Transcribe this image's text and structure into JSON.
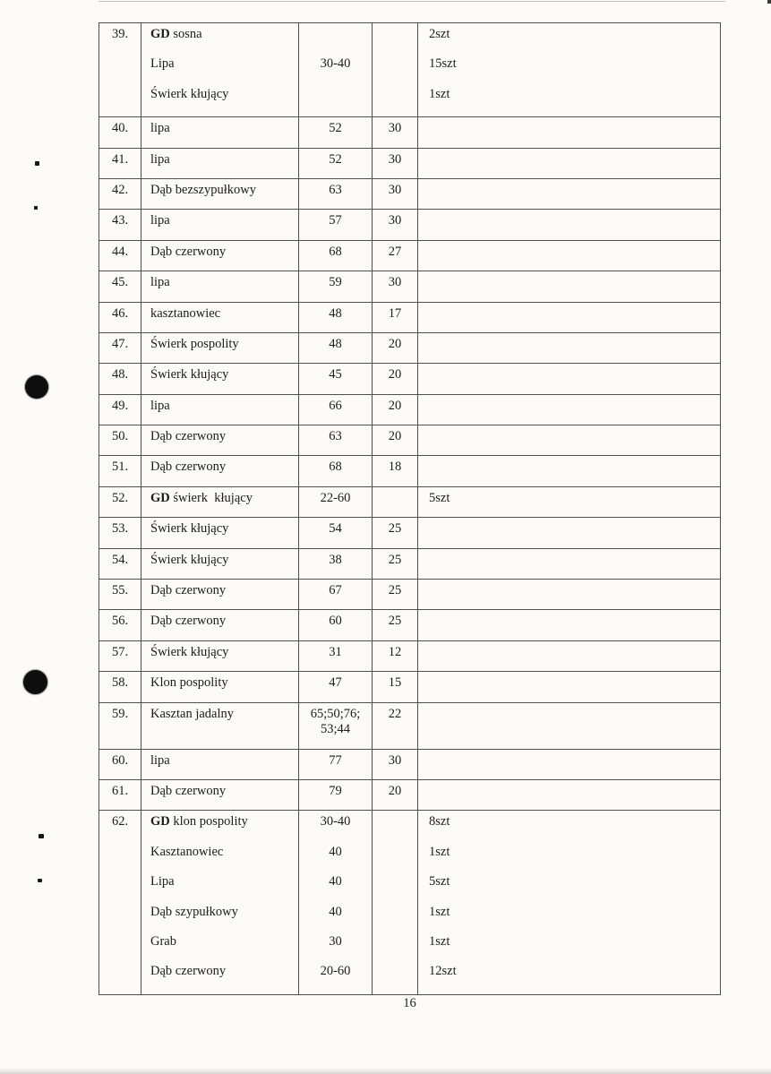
{
  "page": {
    "number": "16"
  },
  "table": {
    "rows": [
      {
        "no": "39.",
        "spaced": true,
        "species": [
          {
            "gd": "GD ",
            "name": "sosna"
          },
          {
            "gd": "",
            "name": "Lipa"
          },
          {
            "gd": "",
            "name": "Świerk kłujący"
          }
        ],
        "diameter": [
          "",
          "30-40"
        ],
        "height": "",
        "qty": [
          "2szt",
          "15szt",
          "1szt"
        ]
      },
      {
        "no": "40.",
        "species": [
          {
            "gd": "",
            "name": "lipa"
          }
        ],
        "diameter": [
          "52"
        ],
        "height": "30",
        "qty": []
      },
      {
        "no": "41.",
        "species": [
          {
            "gd": "",
            "name": "lipa"
          }
        ],
        "diameter": [
          "52"
        ],
        "height": "30",
        "qty": []
      },
      {
        "no": "42.",
        "species": [
          {
            "gd": "",
            "name": "Dąb bezszypułkowy"
          }
        ],
        "diameter": [
          "63"
        ],
        "height": "30",
        "qty": []
      },
      {
        "no": "43.",
        "species": [
          {
            "gd": "",
            "name": "lipa"
          }
        ],
        "diameter": [
          "57"
        ],
        "height": "30",
        "qty": []
      },
      {
        "no": "44.",
        "species": [
          {
            "gd": "",
            "name": "Dąb czerwony"
          }
        ],
        "diameter": [
          "68"
        ],
        "height": "27",
        "qty": []
      },
      {
        "no": "45.",
        "species": [
          {
            "gd": "",
            "name": "lipa"
          }
        ],
        "diameter": [
          "59"
        ],
        "height": "30",
        "qty": []
      },
      {
        "no": "46.",
        "species": [
          {
            "gd": "",
            "name": "kasztanowiec"
          }
        ],
        "diameter": [
          "48"
        ],
        "height": "17",
        "qty": []
      },
      {
        "no": "47.",
        "species": [
          {
            "gd": "",
            "name": "Świerk pospolity"
          }
        ],
        "diameter": [
          "48"
        ],
        "height": "20",
        "qty": []
      },
      {
        "no": "48.",
        "species": [
          {
            "gd": "",
            "name": "Świerk kłujący"
          }
        ],
        "diameter": [
          "45"
        ],
        "height": "20",
        "qty": []
      },
      {
        "no": "49.",
        "species": [
          {
            "gd": "",
            "name": "lipa"
          }
        ],
        "diameter": [
          "66"
        ],
        "height": "20",
        "qty": []
      },
      {
        "no": "50.",
        "species": [
          {
            "gd": "",
            "name": "Dąb czerwony"
          }
        ],
        "diameter": [
          "63"
        ],
        "height": "20",
        "qty": []
      },
      {
        "no": "51.",
        "species": [
          {
            "gd": "",
            "name": "Dąb czerwony"
          }
        ],
        "diameter": [
          "68"
        ],
        "height": "18",
        "qty": []
      },
      {
        "no": "52.",
        "species": [
          {
            "gd": "GD ",
            "name": "świerk  kłujący"
          }
        ],
        "diameter": [
          "22-60"
        ],
        "height": "",
        "qty": [
          "5szt"
        ]
      },
      {
        "no": "53.",
        "species": [
          {
            "gd": "",
            "name": "Świerk kłujący"
          }
        ],
        "diameter": [
          "54"
        ],
        "height": "25",
        "qty": []
      },
      {
        "no": "54.",
        "species": [
          {
            "gd": "",
            "name": "Świerk kłujący"
          }
        ],
        "diameter": [
          "38"
        ],
        "height": "25",
        "qty": []
      },
      {
        "no": "55.",
        "species": [
          {
            "gd": "",
            "name": "Dąb czerwony"
          }
        ],
        "diameter": [
          "67"
        ],
        "height": "25",
        "qty": []
      },
      {
        "no": "56.",
        "species": [
          {
            "gd": "",
            "name": "Dąb czerwony"
          }
        ],
        "diameter": [
          "60"
        ],
        "height": "25",
        "qty": []
      },
      {
        "no": "57.",
        "species": [
          {
            "gd": "",
            "name": "Świerk kłujący"
          }
        ],
        "diameter": [
          "31"
        ],
        "height": "12",
        "qty": []
      },
      {
        "no": "58.",
        "species": [
          {
            "gd": "",
            "name": "Klon pospolity"
          }
        ],
        "diameter": [
          "47"
        ],
        "height": "15",
        "qty": []
      },
      {
        "no": "59.",
        "species": [
          {
            "gd": "",
            "name": "Kasztan jadalny"
          }
        ],
        "diameter": [
          "65;50;76;",
          "53;44"
        ],
        "height": "22",
        "qty": []
      },
      {
        "no": "60.",
        "species": [
          {
            "gd": "",
            "name": "lipa"
          }
        ],
        "diameter": [
          "77"
        ],
        "height": "30",
        "qty": []
      },
      {
        "no": "61.",
        "species": [
          {
            "gd": "",
            "name": "Dąb czerwony"
          }
        ],
        "diameter": [
          "79"
        ],
        "height": "20",
        "qty": []
      },
      {
        "no": "62.",
        "spaced": true,
        "species": [
          {
            "gd": "GD ",
            "name": "klon pospolity"
          },
          {
            "gd": "",
            "name": "Kasztanowiec"
          },
          {
            "gd": "",
            "name": "Lipa"
          },
          {
            "gd": "",
            "name": "Dąb szypułkowy"
          },
          {
            "gd": "",
            "name": "Grab"
          },
          {
            "gd": "",
            "name": "Dąb czerwony"
          }
        ],
        "diameter": [
          "30-40",
          "40",
          "40",
          "40",
          "30",
          "20-60"
        ],
        "height": "",
        "qty": [
          "8szt",
          "1szt",
          "5szt",
          "1szt",
          "1szt",
          "12szt"
        ]
      }
    ]
  }
}
